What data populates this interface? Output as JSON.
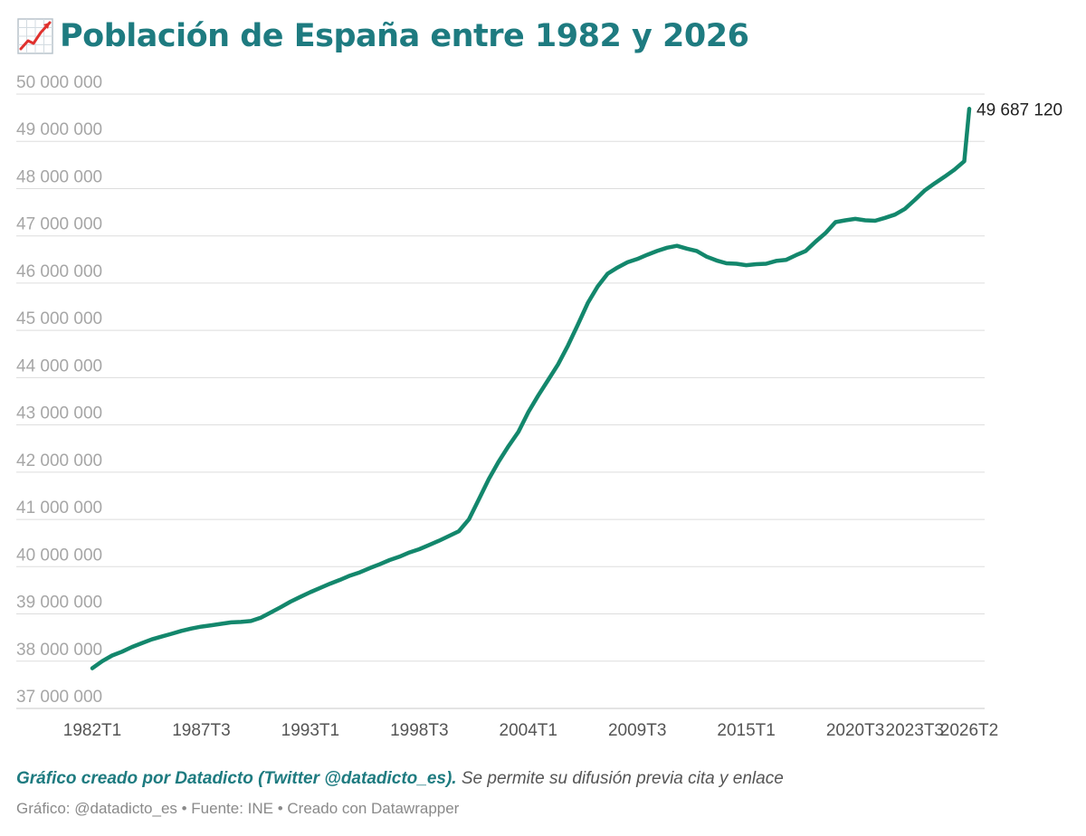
{
  "header": {
    "icon": "chart-increasing-icon",
    "title": "Población de España entre 1982 y 2026"
  },
  "footer": {
    "credit_bold": "Gráfico creado por Datadicto (Twitter @datadicto_es).",
    "credit_rest": " Se permite su difusión previa cita y enlace",
    "source_line": "Gráfico: @datadicto_es • Fuente: INE • Creado con Datawrapper"
  },
  "colors": {
    "title": "#1e7b80",
    "line": "#13876c",
    "grid": "#dddddd",
    "axis_text": "#a6a6a6",
    "x_text": "#555555"
  },
  "chart_data": {
    "type": "line",
    "title": "Población de España entre 1982 y 2026",
    "xlabel": "",
    "ylabel": "",
    "ylim": [
      37000000,
      50000000
    ],
    "xlim": [
      1982.0,
      2026.25
    ],
    "grid": true,
    "y_ticks": [
      {
        "value": 50000000,
        "label": "50 000 000"
      },
      {
        "value": 49000000,
        "label": "49 000 000"
      },
      {
        "value": 48000000,
        "label": "48 000 000"
      },
      {
        "value": 47000000,
        "label": "47 000 000"
      },
      {
        "value": 46000000,
        "label": "46 000 000"
      },
      {
        "value": 45000000,
        "label": "45 000 000"
      },
      {
        "value": 44000000,
        "label": "44 000 000"
      },
      {
        "value": 43000000,
        "label": "43 000 000"
      },
      {
        "value": 42000000,
        "label": "42 000 000"
      },
      {
        "value": 41000000,
        "label": "41 000 000"
      },
      {
        "value": 40000000,
        "label": "40 000 000"
      },
      {
        "value": 39000000,
        "label": "39 000 000"
      },
      {
        "value": 38000000,
        "label": "38 000 000"
      },
      {
        "value": 37000000,
        "label": "37 000 000"
      }
    ],
    "x_ticks": [
      {
        "value": 1982.0,
        "label": "1982T1"
      },
      {
        "value": 1987.5,
        "label": "1987T3"
      },
      {
        "value": 1993.0,
        "label": "1993T1"
      },
      {
        "value": 1998.5,
        "label": "1998T3"
      },
      {
        "value": 2004.0,
        "label": "2004T1"
      },
      {
        "value": 2009.5,
        "label": "2009T3"
      },
      {
        "value": 2015.0,
        "label": "2015T1"
      },
      {
        "value": 2020.5,
        "label": "2020T3"
      },
      {
        "value": 2023.5,
        "label": "2023T3"
      },
      {
        "value": 2026.25,
        "label": "2026T2"
      }
    ],
    "end_label": "49 687 120",
    "series": [
      {
        "name": "",
        "points": [
          [
            1982.0,
            37850000
          ],
          [
            1982.5,
            38000000
          ],
          [
            1983.0,
            38120000
          ],
          [
            1983.5,
            38200000
          ],
          [
            1984.0,
            38300000
          ],
          [
            1984.5,
            38380000
          ],
          [
            1985.0,
            38460000
          ],
          [
            1985.5,
            38520000
          ],
          [
            1986.0,
            38580000
          ],
          [
            1986.5,
            38640000
          ],
          [
            1987.0,
            38690000
          ],
          [
            1987.5,
            38730000
          ],
          [
            1988.0,
            38760000
          ],
          [
            1988.5,
            38790000
          ],
          [
            1989.0,
            38820000
          ],
          [
            1989.5,
            38830000
          ],
          [
            1990.0,
            38850000
          ],
          [
            1990.5,
            38920000
          ],
          [
            1991.0,
            39030000
          ],
          [
            1991.5,
            39140000
          ],
          [
            1992.0,
            39260000
          ],
          [
            1992.5,
            39360000
          ],
          [
            1993.0,
            39460000
          ],
          [
            1993.5,
            39550000
          ],
          [
            1994.0,
            39640000
          ],
          [
            1994.5,
            39720000
          ],
          [
            1995.0,
            39810000
          ],
          [
            1995.5,
            39880000
          ],
          [
            1996.0,
            39970000
          ],
          [
            1996.5,
            40050000
          ],
          [
            1997.0,
            40140000
          ],
          [
            1997.5,
            40210000
          ],
          [
            1998.0,
            40300000
          ],
          [
            1998.5,
            40370000
          ],
          [
            1999.0,
            40460000
          ],
          [
            1999.5,
            40550000
          ],
          [
            2000.0,
            40650000
          ],
          [
            2000.5,
            40750000
          ],
          [
            2001.0,
            41000000
          ],
          [
            2001.5,
            41420000
          ],
          [
            2002.0,
            41850000
          ],
          [
            2002.5,
            42220000
          ],
          [
            2003.0,
            42550000
          ],
          [
            2003.5,
            42850000
          ],
          [
            2004.0,
            43270000
          ],
          [
            2004.5,
            43620000
          ],
          [
            2005.0,
            43950000
          ],
          [
            2005.5,
            44280000
          ],
          [
            2006.0,
            44680000
          ],
          [
            2006.5,
            45120000
          ],
          [
            2007.0,
            45580000
          ],
          [
            2007.5,
            45930000
          ],
          [
            2008.0,
            46200000
          ],
          [
            2008.5,
            46330000
          ],
          [
            2009.0,
            46440000
          ],
          [
            2009.5,
            46510000
          ],
          [
            2010.0,
            46600000
          ],
          [
            2010.5,
            46680000
          ],
          [
            2011.0,
            46750000
          ],
          [
            2011.5,
            46790000
          ],
          [
            2012.0,
            46730000
          ],
          [
            2012.5,
            46680000
          ],
          [
            2013.0,
            46560000
          ],
          [
            2013.5,
            46480000
          ],
          [
            2014.0,
            46420000
          ],
          [
            2014.5,
            46410000
          ],
          [
            2015.0,
            46380000
          ],
          [
            2015.5,
            46400000
          ],
          [
            2016.0,
            46410000
          ],
          [
            2016.5,
            46470000
          ],
          [
            2017.0,
            46490000
          ],
          [
            2017.5,
            46590000
          ],
          [
            2018.0,
            46680000
          ],
          [
            2018.5,
            46880000
          ],
          [
            2019.0,
            47060000
          ],
          [
            2019.5,
            47290000
          ],
          [
            2020.0,
            47330000
          ],
          [
            2020.5,
            47360000
          ],
          [
            2021.0,
            47330000
          ],
          [
            2021.5,
            47320000
          ],
          [
            2022.0,
            47380000
          ],
          [
            2022.5,
            47450000
          ],
          [
            2023.0,
            47570000
          ],
          [
            2023.5,
            47760000
          ],
          [
            2024.0,
            47960000
          ],
          [
            2024.5,
            48110000
          ],
          [
            2025.0,
            48250000
          ],
          [
            2025.5,
            48400000
          ],
          [
            2026.0,
            48580000
          ],
          [
            2026.25,
            49687120
          ]
        ]
      }
    ]
  }
}
